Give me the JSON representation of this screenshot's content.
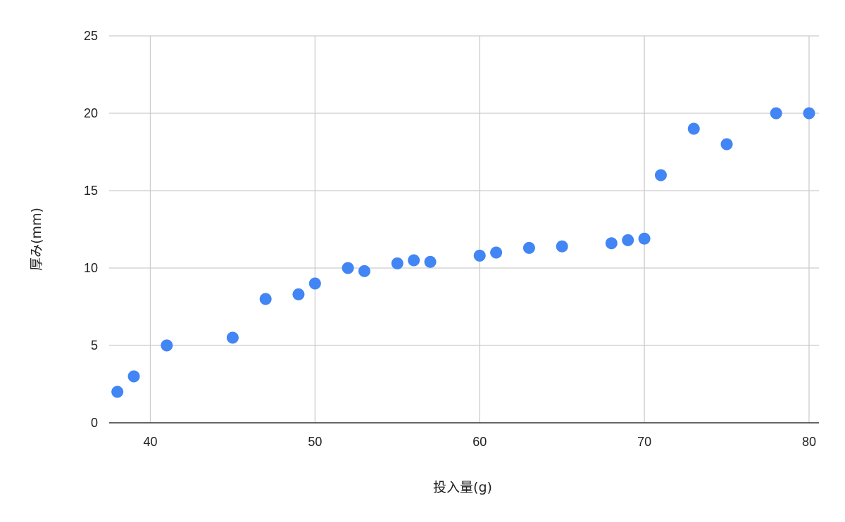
{
  "chart_data": {
    "type": "scatter",
    "title": "",
    "xlabel": "投入量(g)",
    "ylabel": "厚み(mm)",
    "xlim": [
      37.5,
      80.6
    ],
    "ylim": [
      0,
      25
    ],
    "x_ticks": [
      40,
      50,
      60,
      70,
      80
    ],
    "y_ticks": [
      0,
      5,
      10,
      15,
      20,
      25
    ],
    "grid": true,
    "legend": "none",
    "series": [
      {
        "color": "#4285f4",
        "points": [
          [
            38,
            2
          ],
          [
            39,
            3
          ],
          [
            41,
            5
          ],
          [
            45,
            5.5
          ],
          [
            47,
            8
          ],
          [
            49,
            8.3
          ],
          [
            50,
            9
          ],
          [
            52,
            10
          ],
          [
            53,
            9.8
          ],
          [
            55,
            10.3
          ],
          [
            56,
            10.5
          ],
          [
            57,
            10.4
          ],
          [
            60,
            10.8
          ],
          [
            61,
            11
          ],
          [
            63,
            11.3
          ],
          [
            65,
            11.4
          ],
          [
            68,
            11.6
          ],
          [
            69,
            11.8
          ],
          [
            70,
            11.9
          ],
          [
            71,
            16
          ],
          [
            73,
            19
          ],
          [
            75,
            18
          ],
          [
            78,
            20
          ],
          [
            80,
            20
          ]
        ]
      }
    ]
  }
}
